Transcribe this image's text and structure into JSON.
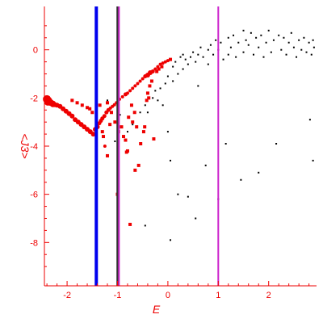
{
  "chart_data": {
    "type": "scatter",
    "title": "",
    "xlabel": "E",
    "ylabel": "<J3>",
    "xlim": [
      -2.45,
      2.95
    ],
    "ylim": [
      -9.8,
      1.8
    ],
    "x_ticks": [
      {
        "value": -2,
        "label": "-2"
      },
      {
        "value": -1,
        "label": "-1"
      },
      {
        "value": 0,
        "label": "0"
      },
      {
        "value": 1,
        "label": "1"
      },
      {
        "value": 2,
        "label": "2"
      }
    ],
    "y_ticks": [
      {
        "value": 0,
        "label": "0"
      },
      {
        "value": -2,
        "label": "-2"
      },
      {
        "value": -4,
        "label": "-4"
      },
      {
        "value": -6,
        "label": "-6"
      },
      {
        "value": -8,
        "label": "-8"
      }
    ],
    "grid": false,
    "vertical_lines": [
      {
        "x": -1.42,
        "color": "#0000ee"
      },
      {
        "x": -1.0,
        "color": "#333333"
      },
      {
        "x": -0.97,
        "color": "#cc22cc"
      },
      {
        "x": 1.0,
        "color": "#cc22cc"
      }
    ],
    "series": [
      {
        "color": "#ee0000",
        "marker": "circle",
        "points": [
          [
            -2.4,
            -2.05,
            5
          ],
          [
            -2.38,
            -2.15,
            5
          ],
          [
            -2.36,
            -2.1,
            4
          ],
          [
            -2.32,
            -2.2,
            4
          ],
          [
            -2.28,
            -2.25,
            4
          ],
          [
            -2.24,
            -2.28,
            3
          ],
          [
            -2.2,
            -2.3,
            3
          ],
          [
            -2.14,
            -2.35,
            3
          ],
          [
            -2.08,
            -2.45,
            3
          ],
          [
            -2.02,
            -2.55,
            3
          ],
          [
            -1.96,
            -2.65,
            3
          ],
          [
            -1.9,
            -2.75,
            3
          ],
          [
            -1.84,
            -2.9,
            3
          ],
          [
            -1.78,
            -3.0,
            3
          ],
          [
            -1.72,
            -3.1,
            3
          ],
          [
            -1.66,
            -3.2,
            3
          ],
          [
            -1.6,
            -3.3,
            3
          ],
          [
            -1.54,
            -3.4,
            3
          ],
          [
            -1.48,
            -3.5,
            3
          ],
          [
            -1.44,
            -3.3,
            3
          ],
          [
            -1.4,
            -3.2,
            3
          ],
          [
            -1.36,
            -3.05,
            2.5
          ],
          [
            -1.33,
            -2.95,
            2.5
          ],
          [
            -1.3,
            -2.85,
            2.5
          ],
          [
            -1.26,
            -2.75,
            2.5
          ],
          [
            -1.22,
            -2.6,
            2.5
          ],
          [
            -1.18,
            -2.5,
            2.5
          ],
          [
            -1.14,
            -2.42,
            2
          ],
          [
            -1.1,
            -2.35,
            2
          ],
          [
            -1.06,
            -2.28,
            2
          ],
          [
            -1.02,
            -2.2,
            2
          ],
          [
            -0.96,
            -2.05,
            2
          ],
          [
            -0.9,
            -1.95,
            2
          ],
          [
            -0.84,
            -1.85,
            2.5
          ],
          [
            -0.8,
            -1.8,
            2
          ],
          [
            -0.75,
            -1.7,
            2
          ],
          [
            -0.7,
            -1.6,
            2
          ],
          [
            -0.65,
            -1.5,
            2
          ],
          [
            -0.6,
            -1.4,
            2
          ],
          [
            -0.55,
            -1.3,
            2
          ],
          [
            -0.5,
            -1.2,
            2
          ],
          [
            -0.45,
            -1.1,
            2.5
          ],
          [
            -0.4,
            -1.05,
            3
          ],
          [
            -0.35,
            -0.95,
            3
          ],
          [
            -0.3,
            -0.9,
            2.5
          ],
          [
            -0.25,
            -0.8,
            2
          ],
          [
            -0.2,
            -0.7,
            2
          ],
          [
            -0.15,
            -0.6,
            2
          ],
          [
            -0.1,
            -0.55,
            2
          ],
          [
            -0.05,
            -0.5,
            2
          ],
          [
            0.0,
            -0.45,
            2
          ],
          [
            0.05,
            -0.4,
            1.5
          ],
          [
            -1.9,
            -2.1,
            1.5
          ],
          [
            -1.8,
            -2.2,
            1.5
          ],
          [
            -1.7,
            -2.3,
            1.5
          ],
          [
            -1.6,
            -2.4,
            1.5
          ],
          [
            -1.55,
            -2.45,
            1.5
          ],
          [
            -1.5,
            -2.6,
            1.5
          ],
          [
            -1.3,
            -3.4,
            1.5
          ],
          [
            -1.28,
            -3.6,
            1.5
          ],
          [
            -1.25,
            -4.0,
            2
          ],
          [
            -1.2,
            -4.4,
            1.5
          ],
          [
            -1.15,
            -3.1,
            1.5
          ],
          [
            -1.12,
            -2.6,
            1.5
          ],
          [
            -1.05,
            -3.0,
            1.5
          ],
          [
            -1.0,
            -6.0,
            1.5
          ],
          [
            -0.98,
            -3.4,
            1.5
          ],
          [
            -0.92,
            -3.2,
            1.5
          ],
          [
            -0.88,
            -3.6,
            1.5
          ],
          [
            -0.84,
            -3.75,
            1.5
          ],
          [
            -0.82,
            -4.25,
            1.5
          ],
          [
            -0.8,
            -4.2,
            1.5
          ],
          [
            -0.78,
            -2.8,
            1.5
          ],
          [
            -0.72,
            -2.3,
            1.5
          ],
          [
            -0.7,
            -3.0,
            1.5
          ],
          [
            -0.66,
            -2.6,
            1.5
          ],
          [
            -0.62,
            -3.2,
            1.5
          ],
          [
            -0.58,
            -4.8,
            1.5
          ],
          [
            -0.54,
            -3.9,
            1.5
          ],
          [
            -0.48,
            -3.4,
            1.5
          ],
          [
            -0.46,
            -3.2,
            1.5
          ],
          [
            -0.42,
            -2.1,
            1.5
          ],
          [
            -0.4,
            -1.8,
            1.5
          ],
          [
            -0.38,
            -2.0,
            1.5
          ],
          [
            -0.36,
            -1.5,
            1.5
          ],
          [
            -0.32,
            -1.3,
            1.5
          ],
          [
            -0.28,
            -3.7,
            1.5
          ],
          [
            -0.22,
            -0.9,
            1.5
          ],
          [
            -0.18,
            -0.8,
            1.5
          ],
          [
            -0.12,
            -0.7,
            1.5
          ],
          [
            -0.75,
            -7.25,
            1.5
          ],
          [
            -0.65,
            -5.0,
            1.5
          ],
          [
            -1.35,
            -2.3,
            1.5
          ],
          [
            -1.2,
            -2.2,
            1.5
          ]
        ]
      },
      {
        "color": "#000000",
        "marker": "dot",
        "points": [
          [
            -1.8,
            -2.2,
            1
          ],
          [
            -1.45,
            -3.3,
            1
          ],
          [
            -1.2,
            -2.1,
            1
          ],
          [
            -1.05,
            -3.8,
            1
          ],
          [
            -0.95,
            -2.7,
            1
          ],
          [
            -0.8,
            -3.4,
            1
          ],
          [
            -0.7,
            -3.1,
            1
          ],
          [
            -0.55,
            -2.6,
            1
          ],
          [
            -0.45,
            -2.3,
            1
          ],
          [
            -0.4,
            -2.6,
            1
          ],
          [
            -0.3,
            -2.0,
            1
          ],
          [
            -0.25,
            -1.7,
            1
          ],
          [
            -0.2,
            -2.1,
            1
          ],
          [
            -0.15,
            -1.6,
            1
          ],
          [
            -0.1,
            -2.3,
            1
          ],
          [
            -0.05,
            -1.4,
            1
          ],
          [
            0.0,
            -1.1,
            1
          ],
          [
            0.0,
            -3.4,
            1
          ],
          [
            0.05,
            -4.6,
            1
          ],
          [
            0.1,
            -1.3,
            1
          ],
          [
            0.1,
            -0.7,
            1
          ],
          [
            0.15,
            -0.5,
            1
          ],
          [
            0.2,
            -1.0,
            1
          ],
          [
            0.2,
            -6.0,
            1
          ],
          [
            0.25,
            -0.3,
            1
          ],
          [
            0.3,
            -0.8,
            1
          ],
          [
            0.3,
            -0.2,
            1
          ],
          [
            0.35,
            -0.4,
            1
          ],
          [
            0.4,
            -6.1,
            1
          ],
          [
            0.4,
            -0.6,
            1
          ],
          [
            0.45,
            -0.3,
            1
          ],
          [
            0.5,
            -0.1,
            1
          ],
          [
            0.55,
            -0.5,
            1
          ],
          [
            0.6,
            -0.2,
            1
          ],
          [
            0.6,
            -1.5,
            1
          ],
          [
            0.65,
            0.1,
            1
          ],
          [
            0.7,
            -0.3,
            1
          ],
          [
            0.75,
            -4.8,
            1
          ],
          [
            0.8,
            0.0,
            1
          ],
          [
            0.8,
            -0.6,
            1
          ],
          [
            0.85,
            0.2,
            1
          ],
          [
            0.9,
            -0.2,
            1
          ],
          [
            0.95,
            0.4,
            1
          ],
          [
            1.0,
            -6.2,
            1
          ],
          [
            1.0,
            0.0,
            1
          ],
          [
            1.05,
            0.3,
            1
          ],
          [
            1.1,
            -0.4,
            1
          ],
          [
            1.15,
            -3.9,
            1
          ],
          [
            1.2,
            0.5,
            1
          ],
          [
            1.2,
            -0.2,
            1
          ],
          [
            1.25,
            0.1,
            1
          ],
          [
            1.3,
            0.6,
            1
          ],
          [
            1.35,
            -0.3,
            1
          ],
          [
            1.4,
            0.3,
            1
          ],
          [
            1.45,
            -5.4,
            1
          ],
          [
            1.5,
            0.8,
            1
          ],
          [
            1.5,
            -0.1,
            1
          ],
          [
            1.55,
            0.4,
            1
          ],
          [
            1.6,
            0.2,
            1
          ],
          [
            1.65,
            0.7,
            1
          ],
          [
            1.7,
            -0.2,
            1
          ],
          [
            1.75,
            0.5,
            1
          ],
          [
            1.8,
            0.1,
            1
          ],
          [
            1.8,
            -5.1,
            1
          ],
          [
            1.85,
            0.6,
            1
          ],
          [
            1.9,
            -0.3,
            1
          ],
          [
            1.95,
            0.3,
            1
          ],
          [
            2.0,
            0.8,
            1
          ],
          [
            2.05,
            -0.1,
            1
          ],
          [
            2.1,
            0.4,
            1
          ],
          [
            2.15,
            -3.9,
            1
          ],
          [
            2.2,
            0.6,
            1
          ],
          [
            2.25,
            0.0,
            1
          ],
          [
            2.3,
            0.5,
            1
          ],
          [
            2.35,
            -0.2,
            1
          ],
          [
            2.4,
            0.3,
            1
          ],
          [
            2.45,
            0.7,
            1
          ],
          [
            2.5,
            0.1,
            1
          ],
          [
            2.55,
            -0.3,
            1
          ],
          [
            2.6,
            0.4,
            1
          ],
          [
            2.65,
            0.0,
            1
          ],
          [
            2.7,
            0.5,
            1
          ],
          [
            2.75,
            -0.1,
            1
          ],
          [
            2.8,
            0.3,
            1
          ],
          [
            2.82,
            -2.9,
            1
          ],
          [
            2.85,
            -0.2,
            1
          ],
          [
            2.88,
            0.4,
            1
          ],
          [
            2.9,
            0.1,
            1
          ],
          [
            0.55,
            -7.0,
            1
          ],
          [
            0.05,
            -7.9,
            1
          ],
          [
            -0.45,
            -7.3,
            1
          ],
          [
            2.88,
            -4.6,
            1
          ]
        ]
      }
    ]
  }
}
